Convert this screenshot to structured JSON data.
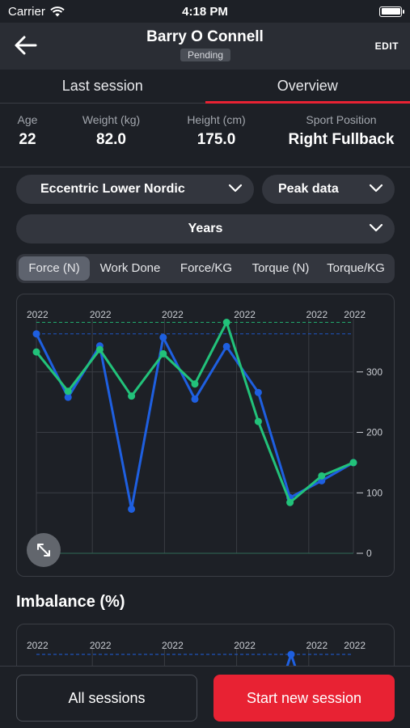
{
  "status_bar": {
    "carrier": "Carrier",
    "time": "4:18 PM"
  },
  "header": {
    "title": "Barry O Connell",
    "badge": "Pending",
    "edit_label": "EDIT"
  },
  "tabs": [
    {
      "label": "Last session",
      "active": false
    },
    {
      "label": "Overview",
      "active": true
    }
  ],
  "stats": [
    {
      "label": "Age",
      "value": "22"
    },
    {
      "label": "Weight (kg)",
      "value": "82.0"
    },
    {
      "label": "Height (cm)",
      "value": "175.0"
    },
    {
      "label": "Sport Position",
      "value": "Right Fullback"
    }
  ],
  "filters": {
    "exercise": "Eccentric Lower Nordic",
    "data_type": "Peak data",
    "period": "Years"
  },
  "segments": [
    {
      "label": "Force (N)",
      "active": true
    },
    {
      "label": "Work Done",
      "active": false
    },
    {
      "label": "Force/KG",
      "active": false
    },
    {
      "label": "Torque (N)",
      "active": false
    },
    {
      "label": "Torque/KG",
      "active": false
    }
  ],
  "chart_data": [
    {
      "type": "line",
      "top_tick_labels": [
        "2022",
        "2022",
        "2022",
        "2022",
        "2022",
        "2022"
      ],
      "y_ticks": [
        "0",
        "100",
        "200",
        "300"
      ],
      "ylim": [
        0,
        380
      ],
      "series": [
        {
          "values": [
            363,
            258,
            343,
            73,
            357,
            255,
            342,
            266,
            92,
            120,
            150
          ],
          "color": "#1e5fe0",
          "max": 363
        },
        {
          "values": [
            333,
            268,
            337,
            260,
            330,
            280,
            382,
            218,
            84,
            128,
            150
          ],
          "color": "#22c27a",
          "max": 382
        }
      ],
      "x_index": [
        0,
        1,
        2,
        3,
        4,
        5,
        6,
        7,
        8,
        9,
        10
      ],
      "colors": {
        "line_a": "#1e5fe0",
        "line_b": "#22c27a",
        "grid": "#3a3d44"
      }
    },
    {
      "type": "line",
      "top_tick_labels": [
        "2022",
        "2022",
        "2022",
        "2022",
        "2022",
        "2022"
      ]
    }
  ],
  "imbalance": {
    "title": "Imbalance (%)"
  },
  "footer": {
    "all_sessions_label": "All sessions",
    "new_session_label": "Start new session"
  },
  "colors": {
    "accent": "#e82233",
    "background": "#1d2026",
    "surface": "#33363e"
  }
}
